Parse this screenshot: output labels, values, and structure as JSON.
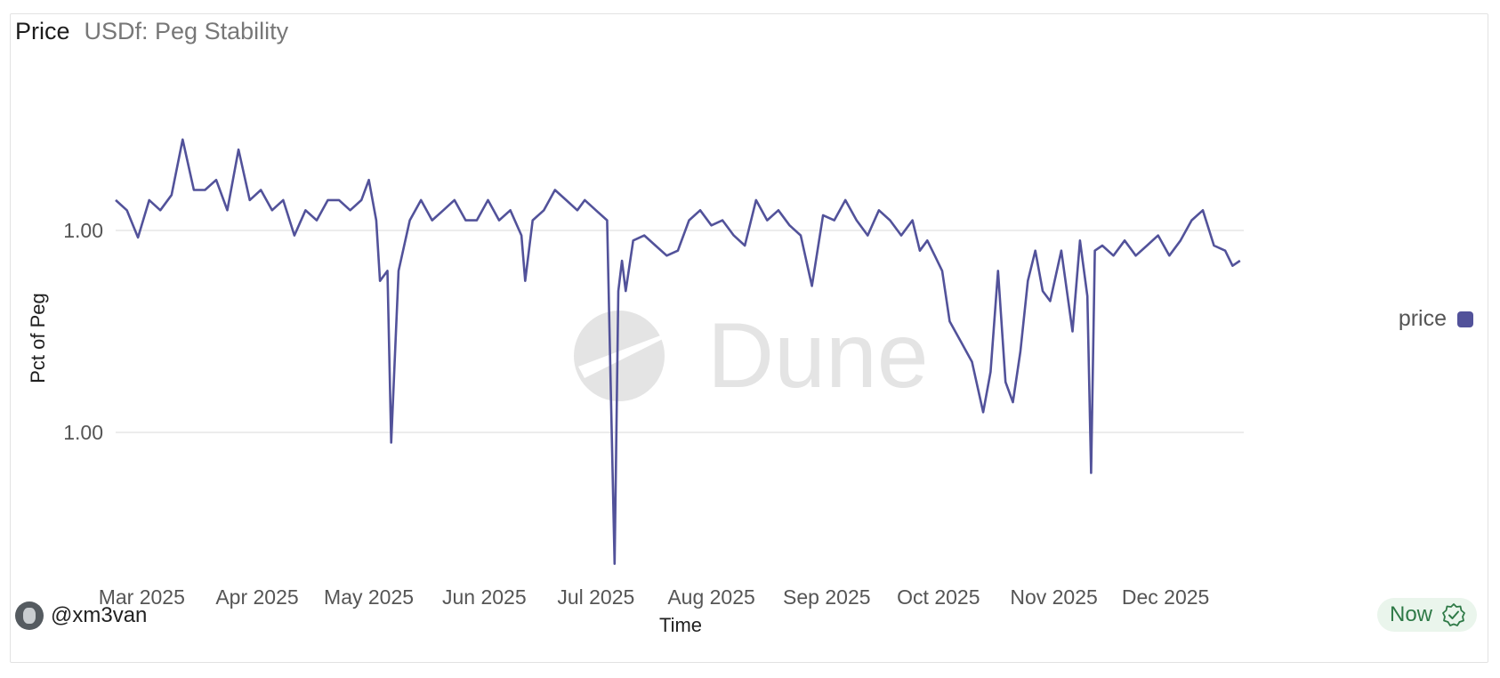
{
  "header": {
    "title": "Price",
    "subtitle": "USDf: Peg Stability"
  },
  "legend": {
    "label": "price",
    "color": "#52529a"
  },
  "author": {
    "name": "@xm3van"
  },
  "status": {
    "label": "Now",
    "icon": "verified-check-icon",
    "color": "#2f7a47"
  },
  "watermark": "Dune",
  "chart_data": {
    "type": "line",
    "xlabel": "Time",
    "ylabel": "Pct of Peg",
    "x_tick_labels": [
      "Mar 2025",
      "Apr 2025",
      "May 2025",
      "Jun 2025",
      "Jul 2025",
      "Aug 2025",
      "Sep 2025",
      "Oct 2025",
      "Nov 2025",
      "Dec 2025"
    ],
    "y_tick_labels": [
      "1.00",
      "1.00"
    ],
    "y_ticks": [
      1.0,
      0.998
    ],
    "ylim": [
      0.9966,
      1.0014
    ],
    "grid": "horizontal",
    "legend_position": "right",
    "series": [
      {
        "name": "price",
        "color": "#52529a",
        "x": [
          "2025-02-22",
          "2025-02-25",
          "2025-02-28",
          "2025-03-03",
          "2025-03-06",
          "2025-03-09",
          "2025-03-12",
          "2025-03-15",
          "2025-03-18",
          "2025-03-21",
          "2025-03-24",
          "2025-03-27",
          "2025-03-30",
          "2025-04-02",
          "2025-04-05",
          "2025-04-08",
          "2025-04-11",
          "2025-04-14",
          "2025-04-17",
          "2025-04-20",
          "2025-04-23",
          "2025-04-26",
          "2025-04-29",
          "2025-05-01",
          "2025-05-03",
          "2025-05-04",
          "2025-05-06",
          "2025-05-07",
          "2025-05-09",
          "2025-05-12",
          "2025-05-15",
          "2025-05-18",
          "2025-05-21",
          "2025-05-24",
          "2025-05-27",
          "2025-05-30",
          "2025-06-02",
          "2025-06-05",
          "2025-06-08",
          "2025-06-11",
          "2025-06-12",
          "2025-06-14",
          "2025-06-17",
          "2025-06-20",
          "2025-06-23",
          "2025-06-26",
          "2025-06-28",
          "2025-07-01",
          "2025-07-04",
          "2025-07-06",
          "2025-07-07",
          "2025-07-08",
          "2025-07-09",
          "2025-07-11",
          "2025-07-14",
          "2025-07-17",
          "2025-07-20",
          "2025-07-23",
          "2025-07-26",
          "2025-07-29",
          "2025-08-01",
          "2025-08-04",
          "2025-08-07",
          "2025-08-10",
          "2025-08-13",
          "2025-08-16",
          "2025-08-19",
          "2025-08-22",
          "2025-08-25",
          "2025-08-28",
          "2025-08-31",
          "2025-09-03",
          "2025-09-06",
          "2025-09-09",
          "2025-09-12",
          "2025-09-15",
          "2025-09-18",
          "2025-09-21",
          "2025-09-24",
          "2025-09-26",
          "2025-09-28",
          "2025-09-30",
          "2025-10-02",
          "2025-10-04",
          "2025-10-07",
          "2025-10-10",
          "2025-10-13",
          "2025-10-15",
          "2025-10-17",
          "2025-10-19",
          "2025-10-21",
          "2025-10-23",
          "2025-10-25",
          "2025-10-27",
          "2025-10-29",
          "2025-10-31",
          "2025-11-03",
          "2025-11-06",
          "2025-11-08",
          "2025-11-10",
          "2025-11-11",
          "2025-11-12",
          "2025-11-14",
          "2025-11-17",
          "2025-11-20",
          "2025-11-23",
          "2025-11-26",
          "2025-11-29",
          "2025-12-02",
          "2025-12-05",
          "2025-12-08",
          "2025-12-11",
          "2025-12-14",
          "2025-12-17",
          "2025-12-19",
          "2025-12-21"
        ],
        "y": [
          1.0003,
          1.0002,
          0.99993,
          1.0003,
          1.0002,
          1.00035,
          1.0009,
          1.0004,
          1.0004,
          1.0005,
          1.0002,
          1.0008,
          1.0003,
          1.0004,
          1.0002,
          1.0003,
          0.99995,
          1.0002,
          1.0001,
          1.0003,
          1.0003,
          1.0002,
          1.0003,
          1.0005,
          1.0001,
          0.9995,
          0.9996,
          0.9979,
          0.9996,
          1.0001,
          1.0003,
          1.0001,
          1.0002,
          1.0003,
          1.0001,
          1.0001,
          1.0003,
          1.0001,
          1.0002,
          0.99995,
          0.9995,
          1.0001,
          1.0002,
          1.0004,
          1.0003,
          1.0002,
          1.0003,
          1.0002,
          1.0001,
          0.9967,
          0.9994,
          0.9997,
          0.9994,
          0.9999,
          0.99995,
          0.99985,
          0.99975,
          0.9998,
          1.0001,
          1.0002,
          1.00005,
          1.0001,
          0.99995,
          0.99985,
          1.0003,
          1.0001,
          1.0002,
          1.00005,
          0.99995,
          0.99945,
          1.00015,
          1.0001,
          1.0003,
          1.0001,
          0.99995,
          1.0002,
          1.0001,
          0.99995,
          1.0001,
          0.9998,
          0.9999,
          0.99975,
          0.9996,
          0.9991,
          0.9989,
          0.9987,
          0.9982,
          0.9986,
          0.9996,
          0.9985,
          0.9983,
          0.9988,
          0.9995,
          0.9998,
          0.9994,
          0.9993,
          0.9998,
          0.999,
          0.9999,
          0.99935,
          0.9976,
          0.9998,
          0.99985,
          0.99975,
          0.9999,
          0.99975,
          0.99985,
          0.99995,
          0.99975,
          0.9999,
          1.0001,
          1.0002,
          0.99985,
          0.9998,
          0.99965,
          0.9997
        ]
      }
    ]
  }
}
